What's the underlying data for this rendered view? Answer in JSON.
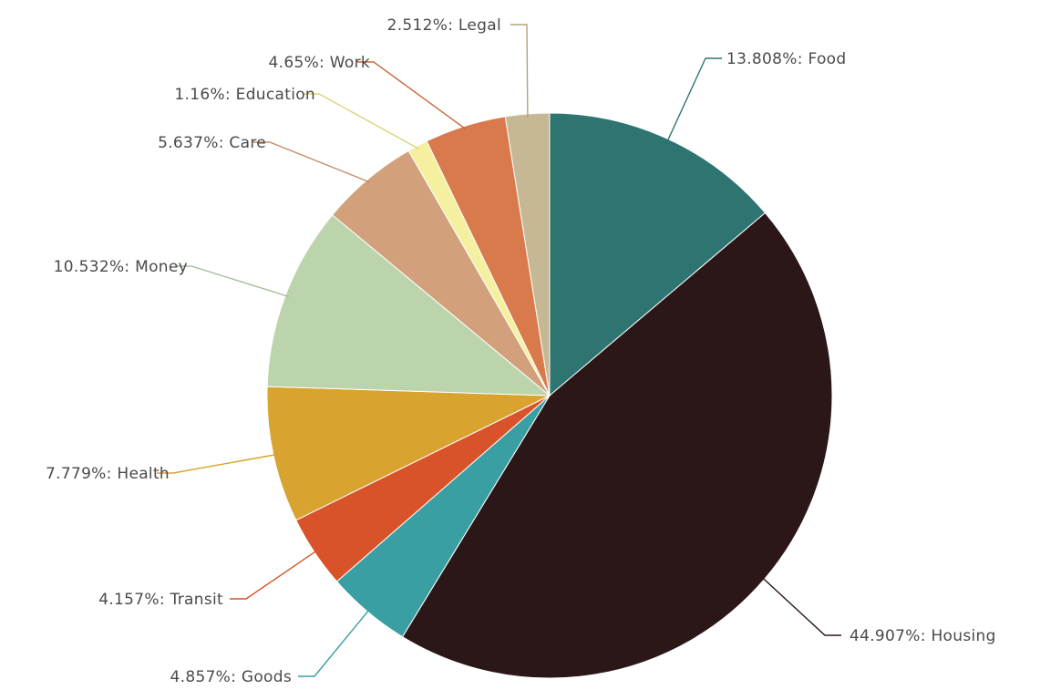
{
  "chart_data": {
    "type": "pie",
    "title": "",
    "start_angle_deg": 0,
    "direction": "clockwise",
    "slices": [
      {
        "category": "Food",
        "value": 13.808,
        "label": "13.808%: Food",
        "color": "#2e7571",
        "leader_color": "#2e7571"
      },
      {
        "category": "Housing",
        "value": 44.907,
        "label": "44.907%: Housing",
        "color": "#2b1618",
        "leader_color": "#2b1618"
      },
      {
        "category": "Goods",
        "value": 4.857,
        "label": "4.857%: Goods",
        "color": "#3a9fa3",
        "leader_color": "#3a9fa3"
      },
      {
        "category": "Transit",
        "value": 4.157,
        "label": "4.157%: Transit",
        "color": "#d9532a",
        "leader_color": "#d9532a"
      },
      {
        "category": "Health",
        "value": 7.779,
        "label": "7.779%: Health",
        "color": "#d8a32e",
        "leader_color": "#d8a32e"
      },
      {
        "category": "Money",
        "value": 10.532,
        "label": "10.532%: Money",
        "color": "#bcd4ac",
        "leader_color": "#a8bf9a"
      },
      {
        "category": "Care",
        "value": 5.637,
        "label": "5.637%: Care",
        "color": "#d2a17c",
        "leader_color": "#c48f6a"
      },
      {
        "category": "Education",
        "value": 1.16,
        "label": "1.16%: Education",
        "color": "#f4f0a0",
        "leader_color": "#d9d47c"
      },
      {
        "category": "Work",
        "value": 4.65,
        "label": "4.65%: Work",
        "color": "#d97a4c",
        "leader_color": "#c96a3e"
      },
      {
        "category": "Legal",
        "value": 2.512,
        "label": "2.512%: Legal",
        "color": "#c6b894",
        "leader_color": "#b0a27c"
      }
    ]
  }
}
